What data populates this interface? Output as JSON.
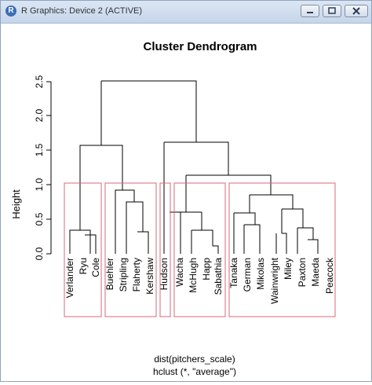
{
  "window": {
    "title": "R Graphics: Device 2 (ACTIVE)",
    "app_icon_letter": "R"
  },
  "controls": {
    "minimize": "minimize",
    "maximize": "maximize",
    "close": "close"
  },
  "plot": {
    "title": "Cluster Dendrogram",
    "ylabel": "Height",
    "xlabel": "dist(pitchers_scale)",
    "sublabel": "hclust (*, \"average\")",
    "yticks": [
      "0.0",
      "0.5",
      "1.0",
      "1.5",
      "2.0",
      "2.5"
    ],
    "leaves": [
      "Verlander",
      "Ryu",
      "Cole",
      "Buehler",
      "Stripling",
      "Flaherty",
      "Kershaw",
      "Hudson",
      "Wacha",
      "McHugh",
      "Happ",
      "Sabathia",
      "Tanaka",
      "German",
      "Mikolas",
      "Wainwright",
      "Miley",
      "Paxton",
      "Maeda",
      "Peacock"
    ],
    "cluster_box_color": "#d9687a"
  }
}
